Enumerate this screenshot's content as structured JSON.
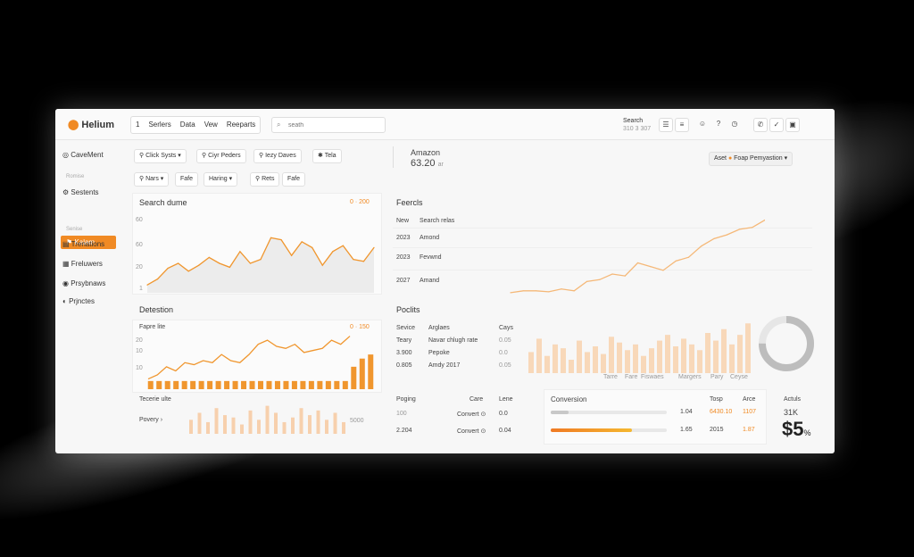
{
  "app": {
    "logo": "Helium"
  },
  "topbar": {
    "menu": [
      "1",
      "Serlers",
      "Data",
      "Vew",
      "Reeparts"
    ],
    "search_placeholder": "seath",
    "search_label_1": "Search",
    "search_label_2": "310 3 307",
    "icons": [
      "list-icon",
      "menu-icon",
      "user-icon",
      "help-icon",
      "phone-icon",
      "check-icon",
      "clipboard-icon"
    ]
  },
  "sidebar": {
    "top": "CaveMent",
    "section1": "Romise",
    "items1": [
      "Sestents"
    ],
    "active": "Kalam",
    "section2": "Senise",
    "items2": [
      "Trenations",
      "Freluwers",
      "Prsybnaws",
      "Prjnctes"
    ]
  },
  "filters": {
    "row1": [
      "Click Systs",
      "Ciyr Peders",
      "Iezy Daves",
      "Tela"
    ],
    "row2": [
      "Nars",
      "Fafe",
      "Haring",
      "Rets",
      "Fafe"
    ]
  },
  "header_stat": {
    "title": "Amazon",
    "value": "63.20",
    "unit": "ar"
  },
  "header_right": {
    "asset_label": "Aset",
    "dropdown": "Foap Pemyastion"
  },
  "search_chart": {
    "title": "Search dume",
    "corner": "0 · 200",
    "yticks": [
      "60",
      "60",
      "20",
      "1"
    ],
    "chart_data": {
      "type": "area",
      "x": [
        0,
        1,
        2,
        3,
        4,
        5,
        6,
        7,
        8,
        9,
        10,
        11,
        12,
        13,
        14,
        15,
        16,
        17,
        18,
        19,
        20,
        21,
        22
      ],
      "values": [
        8,
        14,
        25,
        30,
        22,
        28,
        36,
        30,
        26,
        42,
        30,
        34,
        56,
        54,
        38,
        52,
        46,
        28,
        42,
        48,
        34,
        32,
        46
      ],
      "ylim": [
        0,
        80
      ]
    }
  },
  "forecasts": {
    "title": "Feercls",
    "head": [
      "New",
      "Search relas"
    ],
    "rows": [
      [
        "2023",
        "Amond"
      ],
      [
        "2023",
        "Fevwnd"
      ],
      [
        "2027",
        "Amand"
      ]
    ],
    "chart_data": {
      "type": "line",
      "x": [
        0,
        1,
        2,
        3,
        4,
        5,
        6,
        7,
        8,
        9,
        10,
        11,
        12,
        13,
        14,
        15,
        16,
        17,
        18,
        19,
        20
      ],
      "values": [
        2,
        4,
        4,
        3,
        6,
        4,
        14,
        16,
        22,
        20,
        34,
        30,
        26,
        36,
        40,
        52,
        60,
        64,
        70,
        72,
        80
      ],
      "ylim": [
        0,
        90
      ]
    }
  },
  "detection": {
    "title": "Detestion",
    "sub": "Fapre lite",
    "corner": "0 · 150",
    "yticks": [
      "20",
      "10",
      "10"
    ],
    "chart_data": {
      "type": "bar",
      "values": [
        8,
        8,
        8,
        8,
        8,
        8,
        8,
        8,
        8,
        8,
        8,
        8,
        8,
        8,
        8,
        8,
        8,
        8,
        8,
        8,
        8,
        8,
        8,
        8,
        22,
        30,
        34
      ],
      "line": [
        10,
        14,
        22,
        18,
        26,
        24,
        28,
        26,
        34,
        28,
        26,
        34,
        44,
        48,
        42,
        40,
        44,
        36,
        38,
        40,
        48,
        44,
        52
      ]
    },
    "footer_title": "Tecerie ulte",
    "footer_link": "Povery ›",
    "footer_value": "5000",
    "footer_bars": [
      12,
      18,
      10,
      22,
      16,
      14,
      8,
      20,
      12,
      24,
      18,
      10,
      14,
      22,
      16,
      20,
      12,
      18,
      10
    ]
  },
  "pockets": {
    "title": "Poclits",
    "head": [
      "Sevice",
      "Arglaes",
      "Cays"
    ],
    "rows": [
      [
        "Teary",
        "Navar chlugh rate",
        "0.05"
      ],
      [
        "3.900",
        "Pepoke",
        "0.0"
      ],
      [
        "0.805",
        "Amdy 2017",
        "0.05"
      ]
    ],
    "bars": [
      22,
      36,
      18,
      30,
      26,
      14,
      34,
      22,
      28,
      20,
      38,
      32,
      24,
      30,
      18,
      26,
      34,
      40,
      28,
      36,
      30,
      24,
      42,
      34,
      46,
      30,
      40,
      52
    ],
    "bar_labels": [
      "Tarre",
      "Fare",
      "Fiswaes",
      "Margers",
      "Pary",
      "Ceyse"
    ],
    "donut": {
      "percent": 75
    }
  },
  "bottom_table": {
    "head": [
      "Poging",
      "Care",
      "Lene"
    ],
    "rows": [
      [
        "100",
        "Convert",
        "0.0"
      ],
      [
        "2.204",
        "Convert",
        "0.04"
      ]
    ]
  },
  "conversion": {
    "title": "Conversion",
    "head": [
      "Tosp",
      "Arce"
    ],
    "rows": [
      {
        "value": "1.04",
        "a": "6430.10",
        "b": "1107",
        "progress": 0.15
      },
      {
        "value": "1.65",
        "a": "2015",
        "b": "1.87",
        "progress": 0.7
      }
    ]
  },
  "actuals": {
    "title": "Actuls",
    "sub": "31K",
    "value": "$5",
    "unit": "%"
  }
}
